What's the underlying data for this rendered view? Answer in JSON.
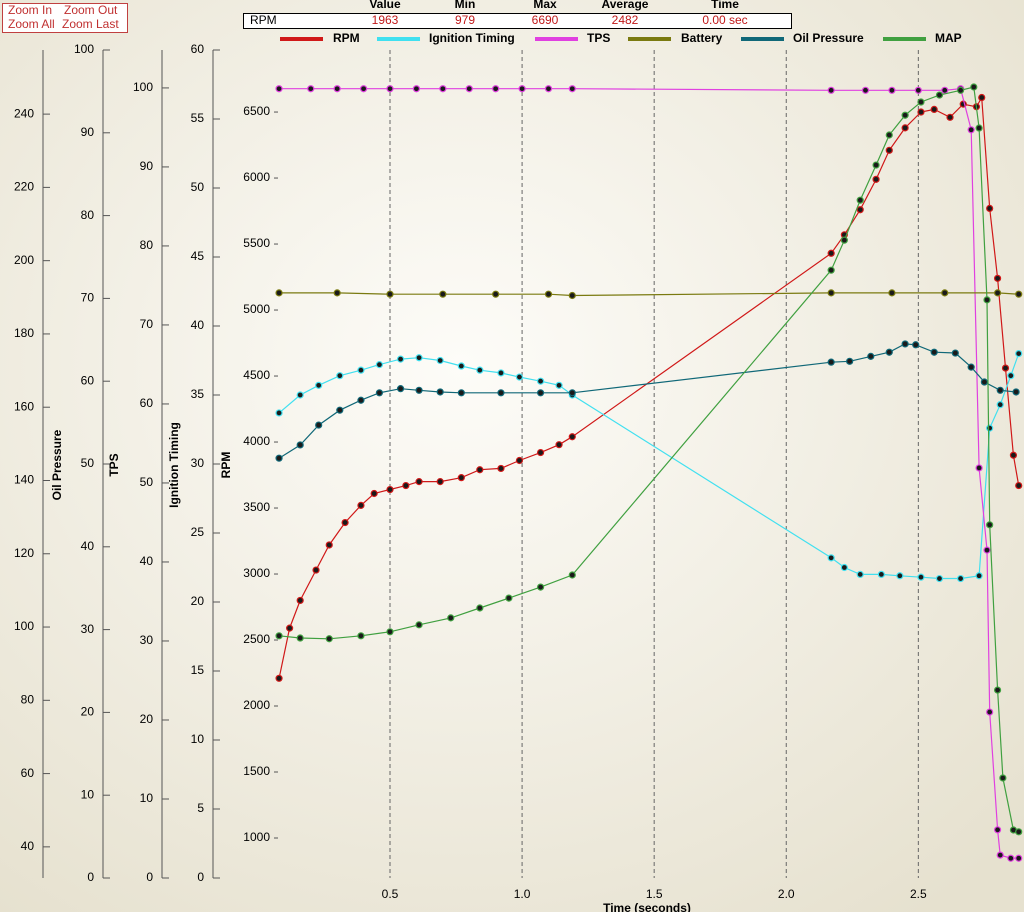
{
  "zoom": {
    "buttons": [
      "Zoom In",
      "Zoom Out",
      "Zoom All",
      "Zoom Last"
    ]
  },
  "stats": {
    "headers": [
      "Value",
      "Min",
      "Max",
      "Average",
      "Time"
    ],
    "row_label": "RPM",
    "row": [
      1963,
      979,
      6690,
      2482,
      "0.00 sec"
    ]
  },
  "chart_data": {
    "type": "line",
    "x_label": "Time (seconds)",
    "xlim": [
      0.076,
      2.9
    ],
    "xticks": [
      0.5,
      {
        "value": 1,
        "label": "1.0"
      },
      1.5,
      {
        "value": 2,
        "label": "2.0"
      },
      2.5
    ],
    "grid": true,
    "axes": [
      {
        "title": "MAP",
        "ylim": [
          31.5,
          257.5
        ],
        "yticks": [
          40,
          60,
          80,
          100,
          120,
          140,
          160,
          180,
          200,
          220,
          240
        ]
      },
      {
        "title": "Oil Pressure",
        "ylim": [
          0,
          100
        ],
        "yticks": [
          0,
          10,
          20,
          30,
          40,
          50,
          60,
          70,
          80,
          90,
          100
        ]
      },
      {
        "title": "TPS",
        "ylim": [
          0,
          104.8
        ],
        "yticks": [
          0,
          10,
          20,
          30,
          40,
          50,
          60,
          70,
          80,
          90,
          100
        ]
      },
      {
        "title": "Ignition Timing",
        "ylim": [
          0,
          60
        ],
        "yticks": [
          0,
          5,
          10,
          15,
          20,
          25,
          30,
          35,
          40,
          45,
          50,
          55,
          60
        ]
      },
      {
        "title": "RPM",
        "ylim": [
          697,
          6970
        ],
        "yticks": [
          1000,
          1500,
          2000,
          2500,
          3000,
          3500,
          4000,
          4500,
          5000,
          5500,
          6000,
          6500
        ]
      }
    ],
    "series": [
      {
        "name": "RPM",
        "color": "#d01818",
        "axis": "RPM",
        "x": [
          0.08,
          0.12,
          0.16,
          0.22,
          0.27,
          0.33,
          0.39,
          0.44,
          0.5,
          0.56,
          0.61,
          0.69,
          0.77,
          0.84,
          0.92,
          0.99,
          1.07,
          1.14,
          1.19,
          2.17,
          2.22,
          2.28,
          2.34,
          2.39,
          2.45,
          2.51,
          2.56,
          2.62,
          2.67,
          2.72,
          2.74,
          2.77,
          2.8,
          2.83,
          2.86,
          2.88
        ],
        "values": [
          2210,
          2590,
          2800,
          3030,
          3220,
          3390,
          3520,
          3610,
          3640,
          3670,
          3700,
          3700,
          3730,
          3790,
          3800,
          3860,
          3920,
          3980,
          4040,
          5430,
          5570,
          5760,
          5990,
          6210,
          6380,
          6500,
          6520,
          6460,
          6560,
          6540,
          6610,
          5770,
          5240,
          4560,
          3900,
          3670
        ]
      },
      {
        "name": "Ignition Timing",
        "color": "#40e0f0",
        "axis": "Ignition Timing",
        "x": [
          0.08,
          0.16,
          0.23,
          0.31,
          0.39,
          0.46,
          0.54,
          0.61,
          0.69,
          0.77,
          0.84,
          0.92,
          0.99,
          1.07,
          1.14,
          1.19,
          2.17,
          2.22,
          2.28,
          2.36,
          2.43,
          2.51,
          2.58,
          2.66,
          2.73,
          2.77,
          2.81,
          2.85,
          2.88
        ],
        "values": [
          33.7,
          35,
          35.7,
          36.4,
          36.8,
          37.2,
          37.6,
          37.7,
          37.5,
          37.1,
          36.8,
          36.6,
          36.3,
          36,
          35.7,
          35,
          23.2,
          22.5,
          22,
          22,
          21.9,
          21.8,
          21.7,
          21.7,
          21.9,
          32.6,
          34.3,
          36.4,
          38
        ]
      },
      {
        "name": "TPS",
        "color": "#e040e0",
        "axis": "TPS",
        "x": [
          0.08,
          0.2,
          0.3,
          0.4,
          0.5,
          0.6,
          0.7,
          0.8,
          0.9,
          1.0,
          1.1,
          1.19,
          2.17,
          2.3,
          2.4,
          2.5,
          2.6,
          2.66,
          2.7,
          2.73,
          2.76,
          2.77,
          2.8,
          2.81,
          2.85,
          2.88
        ],
        "values": [
          99.9,
          99.9,
          99.9,
          99.9,
          99.9,
          99.9,
          99.9,
          99.9,
          99.9,
          99.9,
          99.9,
          99.9,
          99.7,
          99.7,
          99.7,
          99.7,
          99.7,
          99.9,
          94.7,
          51.9,
          41.5,
          21,
          6.1,
          2.9,
          2.5,
          2.5
        ]
      },
      {
        "name": "Battery",
        "color": "#7a7a10",
        "axis": "RPM",
        "x": [
          0.08,
          0.3,
          0.5,
          0.7,
          0.9,
          1.1,
          1.19,
          2.17,
          2.4,
          2.6,
          2.8,
          2.88
        ],
        "values": [
          5130,
          5130,
          5120,
          5120,
          5120,
          5120,
          5110,
          5130,
          5130,
          5130,
          5130,
          5120
        ]
      },
      {
        "name": "Oil Pressure",
        "color": "#106878",
        "axis": "Oil Pressure",
        "x": [
          0.08,
          0.16,
          0.23,
          0.31,
          0.39,
          0.46,
          0.54,
          0.61,
          0.69,
          0.77,
          0.92,
          1.07,
          1.19,
          2.17,
          2.24,
          2.32,
          2.39,
          2.45,
          2.49,
          2.56,
          2.64,
          2.7,
          2.75,
          2.81,
          2.87
        ],
        "values": [
          50.7,
          52.3,
          54.7,
          56.5,
          57.7,
          58.6,
          59.1,
          58.9,
          58.7,
          58.6,
          58.6,
          58.6,
          58.6,
          62.3,
          62.4,
          63,
          63.5,
          64.5,
          64.4,
          63.5,
          63.4,
          61.7,
          59.9,
          58.9,
          58.7
        ]
      },
      {
        "name": "MAP",
        "color": "#40a040",
        "axis": "MAP",
        "x": [
          0.08,
          0.16,
          0.27,
          0.39,
          0.5,
          0.61,
          0.73,
          0.84,
          0.95,
          1.07,
          1.19,
          2.17,
          2.22,
          2.28,
          2.34,
          2.39,
          2.45,
          2.51,
          2.58,
          2.66,
          2.71,
          2.73,
          2.76,
          2.77,
          2.8,
          2.82,
          2.86,
          2.88
        ],
        "values": [
          97.6,
          97,
          96.8,
          97.6,
          98.7,
          100.6,
          102.5,
          105.2,
          107.9,
          110.9,
          114.2,
          197.4,
          205.6,
          216.5,
          226.1,
          234.3,
          239.7,
          243.3,
          245.2,
          246.5,
          247.4,
          236.2,
          189.3,
          127.9,
          82.8,
          58.8,
          44.6,
          44.1
        ]
      }
    ]
  }
}
